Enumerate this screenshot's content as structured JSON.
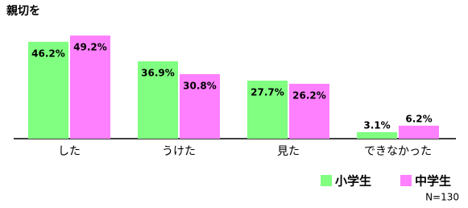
{
  "chart_data": {
    "type": "bar",
    "title": "親切を",
    "categories": [
      "した",
      "うけた",
      "見た",
      "できなかった"
    ],
    "series": [
      {
        "name": "小学生",
        "color": "#80ff80",
        "values": [
          46.2,
          36.9,
          27.7,
          3.1
        ],
        "value_labels": [
          "46.2%",
          "36.9%",
          "27.7%",
          "3.1%"
        ]
      },
      {
        "name": "中学生",
        "color": "#ff80ff",
        "values": [
          49.2,
          30.8,
          26.2,
          6.2
        ],
        "value_labels": [
          "49.2%",
          "30.8%",
          "26.2%",
          "6.2%"
        ]
      }
    ],
    "ylim": [
      0,
      50
    ],
    "legend": "bottom-right",
    "note": "N=130"
  }
}
